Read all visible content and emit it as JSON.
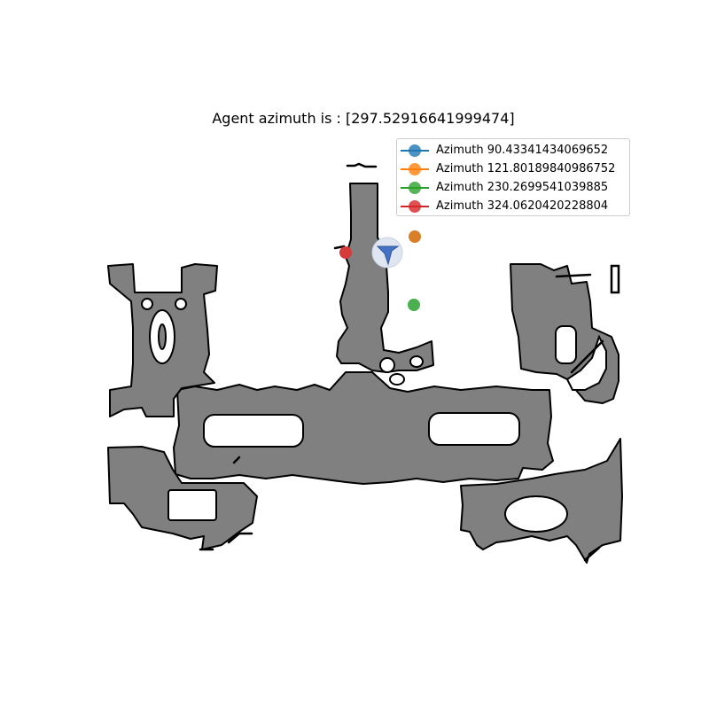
{
  "title": "Agent azimuth is : [297.52916641999474]",
  "colors": {
    "floor": "#808080",
    "wall": "#000000",
    "agent": "#4472c4",
    "agent_halo": "#dfe6f2"
  },
  "legend": {
    "placement": "upper-right",
    "items": [
      {
        "label": "Azimuth 90.43341434069652",
        "color": "#1f77b4"
      },
      {
        "label": "Azimuth 121.80189840986752",
        "color": "#ff7f0e"
      },
      {
        "label": "Azimuth 230.2699541039885",
        "color": "#2ca02c"
      },
      {
        "label": "Azimuth 324.0620420228804",
        "color": "#d62728"
      }
    ]
  },
  "agent": {
    "icon": "arrow-icon",
    "azimuth": 297.52916641999474
  },
  "markers": [
    {
      "azimuth": 121.80189840986752,
      "color": "#d97f2a"
    },
    {
      "azimuth": 230.2699541039885,
      "color": "#4caf50"
    },
    {
      "azimuth": 324.0620420228804,
      "color": "#d73a3a"
    }
  ]
}
